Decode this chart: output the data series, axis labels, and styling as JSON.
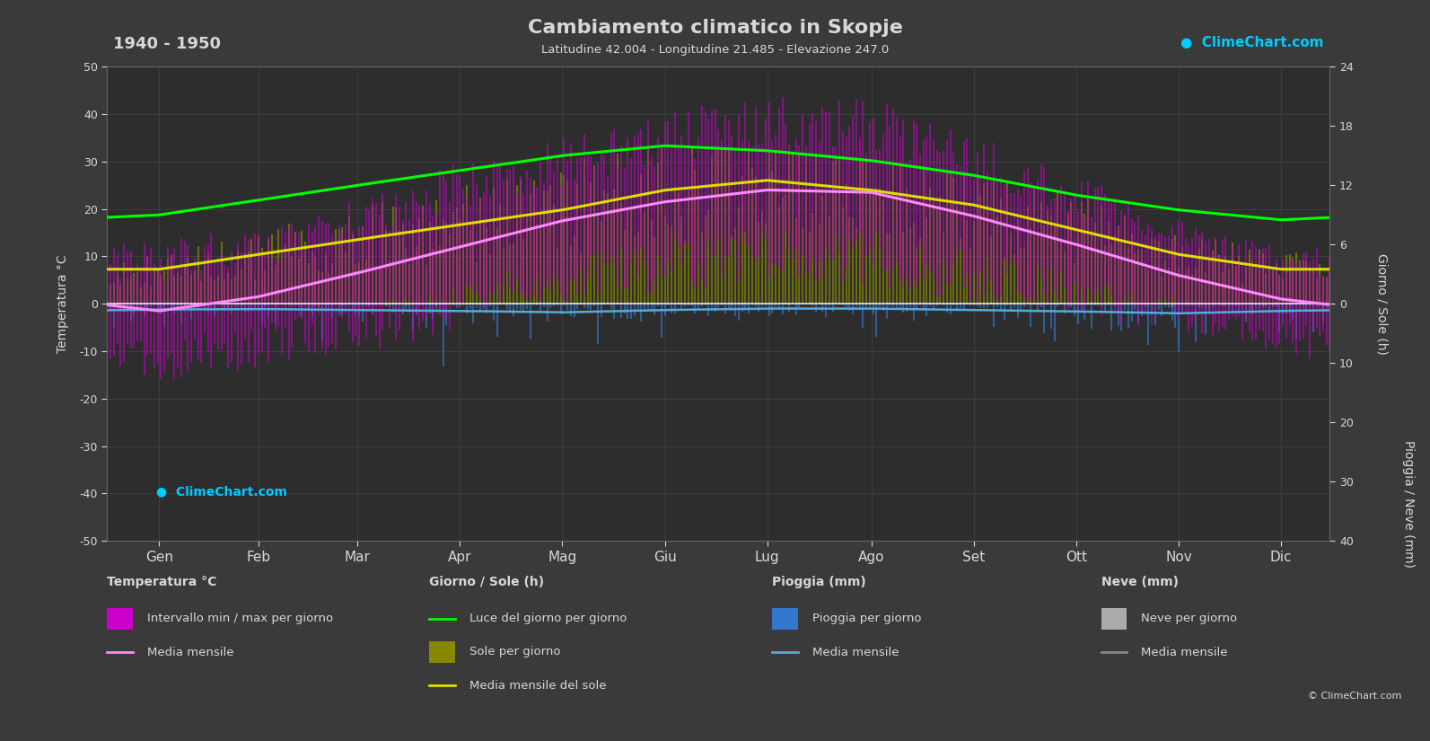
{
  "title": "Cambiamento climatico in Skopje",
  "subtitle": "Latitudine 42.004 - Longitudine 21.485 - Elevazione 247.0",
  "period": "1940 - 1950",
  "bg_color": "#3a3a3a",
  "plot_bg_color": "#2d2d2d",
  "text_color": "#d8d8d8",
  "grid_color": "#555555",
  "months": [
    "Gen",
    "Feb",
    "Mar",
    "Apr",
    "Mag",
    "Giu",
    "Lug",
    "Ago",
    "Set",
    "Ott",
    "Nov",
    "Dic"
  ],
  "temp_mean_monthly": [
    -1.5,
    1.5,
    6.5,
    12.0,
    17.5,
    21.5,
    24.0,
    23.5,
    18.5,
    12.5,
    6.0,
    1.0
  ],
  "temp_max_monthly": [
    6.0,
    9.0,
    15.0,
    21.0,
    26.5,
    31.0,
    34.0,
    33.5,
    27.0,
    20.0,
    12.0,
    6.5
  ],
  "temp_min_monthly": [
    -9.0,
    -6.0,
    -2.0,
    3.0,
    8.5,
    12.0,
    14.0,
    13.5,
    9.0,
    5.0,
    0.0,
    -4.5
  ],
  "sun_hours_monthly": [
    3.5,
    5.0,
    6.5,
    8.0,
    9.5,
    11.5,
    12.5,
    11.5,
    10.0,
    7.5,
    5.0,
    3.5
  ],
  "daylight_hours_monthly": [
    9.0,
    10.5,
    12.0,
    13.5,
    15.0,
    16.0,
    15.5,
    14.5,
    13.0,
    11.0,
    9.5,
    8.5
  ],
  "rain_daily_monthly": [
    1.2,
    1.1,
    1.3,
    1.5,
    1.8,
    1.3,
    1.0,
    1.0,
    1.3,
    1.6,
    2.0,
    1.5
  ],
  "snow_daily_monthly": [
    0.5,
    0.4,
    0.15,
    0.02,
    0.0,
    0.0,
    0.0,
    0.0,
    0.0,
    0.02,
    0.15,
    0.4
  ],
  "noise_seed": 42,
  "noise_temp_scale": 10.0,
  "noise_rain_scale": 0.8,
  "noise_snow_scale": 0.3
}
